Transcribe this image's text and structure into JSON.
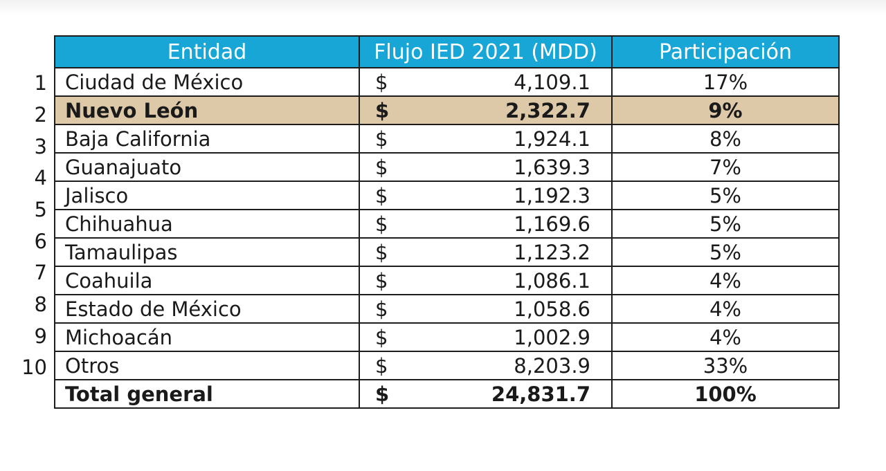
{
  "table": {
    "headers": [
      "Entidad",
      "Flujo IED 2021 (MDD)",
      "Participación"
    ],
    "currency_symbol": "$",
    "highlight_color": "#ddc9a8",
    "header_color": "#17a6d6",
    "rows": [
      {
        "rank": "1",
        "entity": "Ciudad de México",
        "flow": "4,109.1",
        "share": "17%"
      },
      {
        "rank": "2",
        "entity": "Nuevo León",
        "flow": "2,322.7",
        "share": "9%"
      },
      {
        "rank": "3",
        "entity": "Baja California",
        "flow": "1,924.1",
        "share": "8%"
      },
      {
        "rank": "4",
        "entity": "Guanajuato",
        "flow": "1,639.3",
        "share": "7%"
      },
      {
        "rank": "5",
        "entity": "Jalisco",
        "flow": "1,192.3",
        "share": "5%"
      },
      {
        "rank": "6",
        "entity": "Chihuahua",
        "flow": "1,169.6",
        "share": "5%"
      },
      {
        "rank": "7",
        "entity": "Tamaulipas",
        "flow": "1,123.2",
        "share": "5%"
      },
      {
        "rank": "8",
        "entity": "Coahuila",
        "flow": "1,086.1",
        "share": "4%"
      },
      {
        "rank": "9",
        "entity": "Estado de México",
        "flow": "1,058.6",
        "share": "4%"
      },
      {
        "rank": "10",
        "entity": "Michoacán",
        "flow": "1,002.9",
        "share": "4%"
      },
      {
        "rank": "",
        "entity": "Otros",
        "flow": "8,203.9",
        "share": "33%"
      }
    ],
    "total": {
      "entity": "Total general",
      "flow": "24,831.7",
      "share": "100%"
    }
  }
}
